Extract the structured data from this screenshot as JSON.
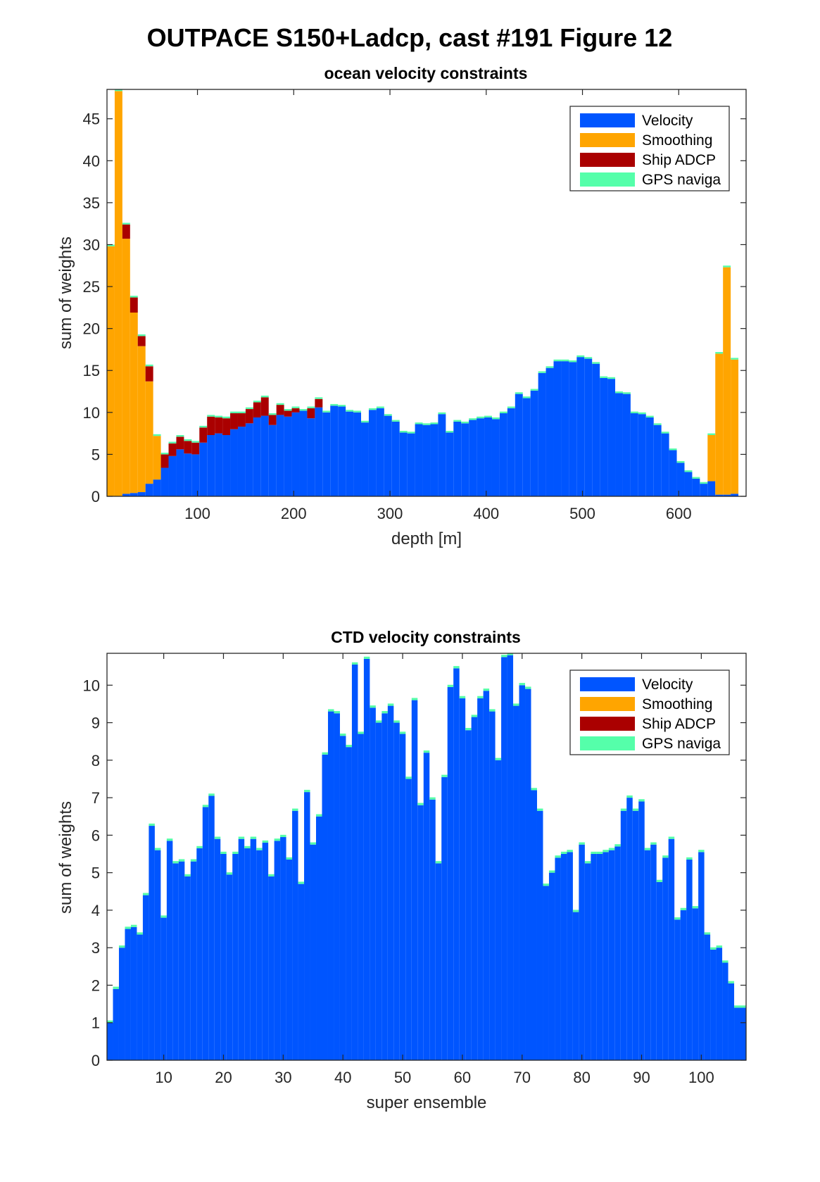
{
  "figure": {
    "title": "OUTPACE S150+Ladcp, cast #191  Figure 12"
  },
  "colors": {
    "Velocity": "#0055ff",
    "Smoothing": "#ffa500",
    "Ship ADCP": "#aa0000",
    "GPS naviga": "#55ffaa"
  },
  "chart_data": [
    {
      "type": "bar",
      "stacked": true,
      "title": "ocean velocity constraints",
      "xlabel": "depth [m]",
      "ylabel": "sum of weights",
      "xlim": [
        6,
        670
      ],
      "ylim": [
        0,
        48.5
      ],
      "xticks": [
        100,
        200,
        300,
        400,
        500,
        600
      ],
      "yticks": [
        0,
        5,
        10,
        15,
        20,
        25,
        30,
        35,
        40,
        45
      ],
      "bin_start": 6,
      "bin_width": 8,
      "legend": [
        "Velocity",
        "Smoothing",
        "Ship ADCP",
        "GPS naviga"
      ],
      "legend_position": "top-right",
      "grid": false,
      "series": [
        {
          "name": "Velocity",
          "values": [
            0,
            0,
            0.3,
            0.4,
            0.5,
            1.5,
            2.0,
            3.4,
            4.8,
            5.6,
            5.1,
            5.0,
            6.4,
            7.3,
            7.5,
            7.3,
            8.0,
            8.3,
            8.7,
            9.4,
            9.6,
            8.5,
            9.7,
            9.5,
            10.0,
            10.2,
            9.3,
            10.6,
            10.0,
            10.8,
            10.7,
            10.1,
            10.0,
            8.8,
            10.3,
            10.5,
            9.6,
            8.9,
            7.6,
            7.5,
            8.6,
            8.5,
            8.6,
            9.8,
            7.6,
            8.9,
            8.7,
            9.1,
            9.3,
            9.4,
            9.2,
            9.9,
            10.5,
            12.2,
            11.7,
            12.6,
            14.7,
            15.3,
            16.1,
            16.1,
            16.0,
            16.6,
            16.4,
            15.8,
            14.1,
            14.0,
            12.3,
            12.2,
            9.9,
            9.8,
            9.4,
            8.5,
            7.5,
            5.5,
            4.0,
            2.9,
            2.1,
            1.5,
            1.8,
            0.2,
            0.2,
            0.3
          ],
          "label_positions": []
        },
        {
          "name": "Smoothing",
          "values": [
            29.8,
            48.3,
            30.4,
            21.5,
            17.4,
            12.2,
            5.2,
            0,
            0,
            0,
            0,
            0,
            0,
            0,
            0,
            0,
            0,
            0,
            0,
            0,
            0,
            0,
            0,
            0,
            0,
            0,
            0,
            0,
            0,
            0,
            0,
            0,
            0,
            0,
            0,
            0,
            0,
            0,
            0,
            0,
            0,
            0,
            0,
            0,
            0,
            0,
            0,
            0,
            0,
            0,
            0,
            0,
            0,
            0,
            0,
            0,
            0,
            0,
            0,
            0,
            0,
            0,
            0,
            0,
            0,
            0,
            0,
            0,
            0,
            0,
            0,
            0,
            0,
            0,
            0,
            0,
            0,
            0,
            5.5,
            16.8,
            27.1,
            16.0
          ]
        },
        {
          "name": "Ship ADCP",
          "values": [
            0,
            0,
            1.7,
            1.8,
            1.2,
            1.8,
            0,
            1.6,
            1.5,
            1.5,
            1.5,
            1.4,
            1.8,
            2.2,
            1.9,
            2.0,
            1.9,
            1.6,
            1.7,
            1.8,
            2.2,
            1.2,
            1.2,
            0.7,
            0.5,
            0.0,
            1.2,
            1.0,
            0,
            0,
            0,
            0,
            0,
            0,
            0,
            0,
            0,
            0,
            0,
            0,
            0,
            0,
            0,
            0,
            0,
            0,
            0,
            0,
            0,
            0,
            0,
            0,
            0,
            0,
            0,
            0,
            0,
            0,
            0,
            0,
            0,
            0,
            0,
            0,
            0,
            0,
            0,
            0,
            0,
            0,
            0,
            0,
            0,
            0,
            0,
            0,
            0,
            0,
            0,
            0,
            0,
            0
          ]
        },
        {
          "name": "GPS naviga",
          "values": [
            0.2,
            0.2,
            0.2,
            0.2,
            0.2,
            0.2,
            0.2,
            0.2,
            0.2,
            0.2,
            0.2,
            0.2,
            0.2,
            0.2,
            0.2,
            0.2,
            0.2,
            0.2,
            0.2,
            0.2,
            0.2,
            0.2,
            0.2,
            0.2,
            0.2,
            0.2,
            0.2,
            0.2,
            0.2,
            0.2,
            0.2,
            0.2,
            0.2,
            0.2,
            0.2,
            0.2,
            0.2,
            0.2,
            0.2,
            0.2,
            0.2,
            0.2,
            0.2,
            0.2,
            0.2,
            0.2,
            0.2,
            0.2,
            0.2,
            0.2,
            0.2,
            0.2,
            0.2,
            0.2,
            0.2,
            0.2,
            0.2,
            0.2,
            0.2,
            0.2,
            0.2,
            0.2,
            0.2,
            0.2,
            0.2,
            0.2,
            0.2,
            0.2,
            0.2,
            0.2,
            0.2,
            0.2,
            0.2,
            0.2,
            0.2,
            0.2,
            0.2,
            0.2,
            0.2,
            0.2,
            0.2,
            0.2
          ]
        }
      ]
    },
    {
      "type": "bar",
      "stacked": true,
      "title": "CTD velocity constraints",
      "xlabel": "super ensemble",
      "ylabel": "sum of weights",
      "xlim": [
        0.5,
        107.5
      ],
      "ylim": [
        0,
        10.85
      ],
      "xticks": [
        10,
        20,
        30,
        40,
        50,
        60,
        70,
        80,
        90,
        100
      ],
      "yticks": [
        0,
        1,
        2,
        3,
        4,
        5,
        6,
        7,
        8,
        9,
        10
      ],
      "bin_start": 0.5,
      "bin_width": 1,
      "legend": [
        "Velocity",
        "Smoothing",
        "Ship ADCP",
        "GPS naviga"
      ],
      "legend_position": "top-right",
      "grid": false,
      "series": [
        {
          "name": "Velocity",
          "values": [
            1.0,
            1.9,
            3.0,
            3.5,
            3.55,
            3.35,
            4.4,
            6.25,
            5.6,
            3.8,
            5.85,
            5.25,
            5.3,
            4.9,
            5.3,
            5.65,
            6.75,
            7.05,
            5.9,
            5.5,
            4.95,
            5.5,
            5.9,
            5.65,
            5.9,
            5.6,
            5.8,
            4.9,
            5.85,
            5.95,
            5.35,
            6.65,
            4.7,
            7.15,
            5.75,
            6.5,
            8.15,
            9.3,
            9.25,
            8.65,
            8.35,
            10.55,
            8.7,
            10.7,
            9.4,
            9.0,
            9.25,
            9.45,
            9.0,
            8.7,
            7.5,
            9.6,
            6.8,
            8.2,
            6.95,
            5.25,
            7.55,
            9.95,
            10.45,
            9.65,
            8.8,
            9.15,
            9.65,
            9.85,
            9.3,
            8.0,
            10.75,
            10.8,
            9.45,
            10.0,
            9.9,
            7.2,
            6.65,
            4.65,
            5.0,
            5.4,
            5.5,
            5.55,
            3.95,
            5.75,
            5.25,
            5.5,
            5.5,
            5.55,
            5.6,
            5.7,
            6.65,
            7.0,
            6.65,
            6.9,
            5.6,
            5.75,
            4.75,
            5.4,
            5.9,
            3.75,
            4.0,
            5.35,
            4.05,
            5.55,
            3.35,
            2.95,
            3.0,
            2.6,
            2.05,
            1.4,
            1.4
          ],
          "note": ""
        },
        {
          "name": "Smoothing",
          "values": []
        },
        {
          "name": "Ship ADCP",
          "values": []
        },
        {
          "name": "GPS naviga",
          "values": "thin cap on each bar"
        }
      ]
    }
  ]
}
